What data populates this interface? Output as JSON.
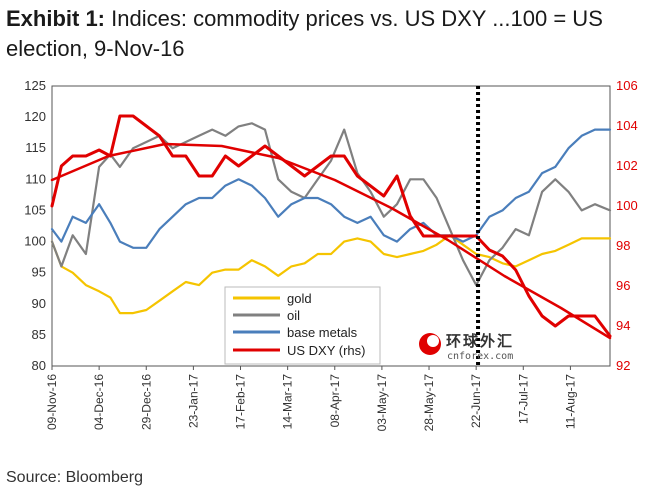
{
  "header": {
    "lead": "Exhibit 1:",
    "title": "Indices: commodity prices vs. US DXY ...100 = US election, 9-Nov-16"
  },
  "footer": {
    "source": "Source: Bloomberg"
  },
  "watermark": {
    "logo_text": "环球外汇",
    "site": "cnforex.com"
  },
  "colors": {
    "gold": "#f5c400",
    "oil": "#808080",
    "base_metals": "#4a7ebb",
    "dxy": "#e00000",
    "right_axis": "#e00000"
  },
  "chart_data": {
    "type": "line",
    "title": "Indices: commodity prices vs. US DXY ...100 = US election, 9-Nov-16",
    "x_tick_labels": [
      "09-Nov-16",
      "04-Dec-16",
      "29-Dec-16",
      "23-Jan-17",
      "17-Feb-17",
      "14-Mar-17",
      "08-Apr-17",
      "03-May-17",
      "28-May-17",
      "22-Jun-17",
      "17-Jul-17",
      "11-Aug-17"
    ],
    "x_range": [
      "2016-11-09",
      "2017-09-01"
    ],
    "y_left": {
      "ticks": [
        "80",
        "85",
        "90",
        "95",
        "100",
        "105",
        "110",
        "115",
        "120",
        "125"
      ],
      "range": [
        80,
        125
      ]
    },
    "y_right": {
      "ticks": [
        "92",
        "94",
        "96",
        "98",
        "100",
        "102",
        "104",
        "106"
      ],
      "range": [
        92,
        106
      ]
    },
    "vertical_marker": {
      "date": "2017-06-23",
      "style": "dotted"
    },
    "legend": {
      "placement": "bottom-center",
      "entries": [
        "gold",
        "oil",
        "base metals",
        "US DXY (rhs)"
      ]
    },
    "series": [
      {
        "name": "gold",
        "axis": "left",
        "color": "#f5c400",
        "points": [
          [
            "2016-11-09",
            100
          ],
          [
            "2016-11-14",
            96
          ],
          [
            "2016-11-20",
            95
          ],
          [
            "2016-11-27",
            93
          ],
          [
            "2016-12-04",
            92
          ],
          [
            "2016-12-10",
            91
          ],
          [
            "2016-12-15",
            88.5
          ],
          [
            "2016-12-22",
            88.5
          ],
          [
            "2016-12-29",
            89
          ],
          [
            "2017-01-05",
            90.5
          ],
          [
            "2017-01-12",
            92
          ],
          [
            "2017-01-19",
            93.5
          ],
          [
            "2017-01-26",
            93
          ],
          [
            "2017-02-02",
            95
          ],
          [
            "2017-02-09",
            95.5
          ],
          [
            "2017-02-16",
            95.5
          ],
          [
            "2017-02-23",
            97
          ],
          [
            "2017-03-02",
            96
          ],
          [
            "2017-03-09",
            94.5
          ],
          [
            "2017-03-16",
            96
          ],
          [
            "2017-03-23",
            96.5
          ],
          [
            "2017-03-30",
            98
          ],
          [
            "2017-04-06",
            98
          ],
          [
            "2017-04-13",
            100
          ],
          [
            "2017-04-20",
            100.5
          ],
          [
            "2017-04-27",
            100
          ],
          [
            "2017-05-04",
            98
          ],
          [
            "2017-05-11",
            97.5
          ],
          [
            "2017-05-18",
            98
          ],
          [
            "2017-05-25",
            98.5
          ],
          [
            "2017-06-01",
            99.5
          ],
          [
            "2017-06-08",
            101
          ],
          [
            "2017-06-15",
            99.5
          ],
          [
            "2017-06-22",
            98
          ],
          [
            "2017-06-29",
            97.5
          ],
          [
            "2017-07-06",
            96.5
          ],
          [
            "2017-07-13",
            96
          ],
          [
            "2017-07-20",
            97
          ],
          [
            "2017-07-27",
            98
          ],
          [
            "2017-08-03",
            98.5
          ],
          [
            "2017-08-10",
            99.5
          ],
          [
            "2017-08-17",
            100.5
          ],
          [
            "2017-08-24",
            100.5
          ],
          [
            "2017-09-01",
            100.5
          ]
        ]
      },
      {
        "name": "oil",
        "axis": "left",
        "color": "#808080",
        "points": [
          [
            "2016-11-09",
            100
          ],
          [
            "2016-11-14",
            96
          ],
          [
            "2016-11-20",
            101
          ],
          [
            "2016-11-27",
            98
          ],
          [
            "2016-12-04",
            112
          ],
          [
            "2016-12-10",
            114
          ],
          [
            "2016-12-15",
            112
          ],
          [
            "2016-12-22",
            115
          ],
          [
            "2016-12-29",
            116
          ],
          [
            "2017-01-05",
            117
          ],
          [
            "2017-01-12",
            115
          ],
          [
            "2017-01-19",
            116
          ],
          [
            "2017-01-26",
            117
          ],
          [
            "2017-02-02",
            118
          ],
          [
            "2017-02-09",
            117
          ],
          [
            "2017-02-16",
            118.5
          ],
          [
            "2017-02-23",
            119
          ],
          [
            "2017-03-02",
            118
          ],
          [
            "2017-03-09",
            110
          ],
          [
            "2017-03-16",
            108
          ],
          [
            "2017-03-23",
            107
          ],
          [
            "2017-03-30",
            110
          ],
          [
            "2017-04-06",
            113
          ],
          [
            "2017-04-13",
            118
          ],
          [
            "2017-04-20",
            111
          ],
          [
            "2017-04-27",
            108
          ],
          [
            "2017-05-04",
            104
          ],
          [
            "2017-05-11",
            106
          ],
          [
            "2017-05-18",
            110
          ],
          [
            "2017-05-25",
            110
          ],
          [
            "2017-06-01",
            107
          ],
          [
            "2017-06-08",
            102
          ],
          [
            "2017-06-15",
            97
          ],
          [
            "2017-06-22",
            93
          ],
          [
            "2017-06-29",
            97
          ],
          [
            "2017-07-06",
            99
          ],
          [
            "2017-07-13",
            102
          ],
          [
            "2017-07-20",
            101
          ],
          [
            "2017-07-27",
            108
          ],
          [
            "2017-08-03",
            110
          ],
          [
            "2017-08-10",
            108
          ],
          [
            "2017-08-17",
            105
          ],
          [
            "2017-08-24",
            106
          ],
          [
            "2017-09-01",
            105
          ]
        ]
      },
      {
        "name": "base metals",
        "axis": "left",
        "color": "#4a7ebb",
        "points": [
          [
            "2016-11-09",
            102
          ],
          [
            "2016-11-14",
            100
          ],
          [
            "2016-11-20",
            104
          ],
          [
            "2016-11-27",
            103
          ],
          [
            "2016-12-04",
            106
          ],
          [
            "2016-12-10",
            103
          ],
          [
            "2016-12-15",
            100
          ],
          [
            "2016-12-22",
            99
          ],
          [
            "2016-12-29",
            99
          ],
          [
            "2017-01-05",
            102
          ],
          [
            "2017-01-12",
            104
          ],
          [
            "2017-01-19",
            106
          ],
          [
            "2017-01-26",
            107
          ],
          [
            "2017-02-02",
            107
          ],
          [
            "2017-02-09",
            109
          ],
          [
            "2017-02-16",
            110
          ],
          [
            "2017-02-23",
            109
          ],
          [
            "2017-03-02",
            107
          ],
          [
            "2017-03-09",
            104
          ],
          [
            "2017-03-16",
            106
          ],
          [
            "2017-03-23",
            107
          ],
          [
            "2017-03-30",
            107
          ],
          [
            "2017-04-06",
            106
          ],
          [
            "2017-04-13",
            104
          ],
          [
            "2017-04-20",
            103
          ],
          [
            "2017-04-27",
            104
          ],
          [
            "2017-05-04",
            101
          ],
          [
            "2017-05-11",
            100
          ],
          [
            "2017-05-18",
            102
          ],
          [
            "2017-05-25",
            103
          ],
          [
            "2017-06-01",
            101
          ],
          [
            "2017-06-08",
            101
          ],
          [
            "2017-06-15",
            100
          ],
          [
            "2017-06-22",
            101
          ],
          [
            "2017-06-29",
            104
          ],
          [
            "2017-07-06",
            105
          ],
          [
            "2017-07-13",
            107
          ],
          [
            "2017-07-20",
            108
          ],
          [
            "2017-07-27",
            111
          ],
          [
            "2017-08-03",
            112
          ],
          [
            "2017-08-10",
            115
          ],
          [
            "2017-08-17",
            117
          ],
          [
            "2017-08-24",
            118
          ],
          [
            "2017-09-01",
            118
          ]
        ]
      },
      {
        "name": "US DXY (rhs)",
        "axis": "right",
        "color": "#e00000",
        "points": [
          [
            "2016-11-09",
            100
          ],
          [
            "2016-11-14",
            102
          ],
          [
            "2016-11-20",
            102.5
          ],
          [
            "2016-11-27",
            102.5
          ],
          [
            "2016-12-04",
            102.8
          ],
          [
            "2016-12-10",
            102.5
          ],
          [
            "2016-12-15",
            104.5
          ],
          [
            "2016-12-22",
            104.5
          ],
          [
            "2016-12-29",
            104
          ],
          [
            "2017-01-05",
            103.5
          ],
          [
            "2017-01-12",
            102.5
          ],
          [
            "2017-01-19",
            102.5
          ],
          [
            "2017-01-26",
            101.5
          ],
          [
            "2017-02-02",
            101.5
          ],
          [
            "2017-02-09",
            102.5
          ],
          [
            "2017-02-16",
            102
          ],
          [
            "2017-02-23",
            102.5
          ],
          [
            "2017-03-02",
            103
          ],
          [
            "2017-03-09",
            102.5
          ],
          [
            "2017-03-16",
            102
          ],
          [
            "2017-03-23",
            101.5
          ],
          [
            "2017-03-30",
            102
          ],
          [
            "2017-04-06",
            102.5
          ],
          [
            "2017-04-13",
            102.5
          ],
          [
            "2017-04-20",
            101.5
          ],
          [
            "2017-04-27",
            101
          ],
          [
            "2017-05-04",
            100.5
          ],
          [
            "2017-05-11",
            101.5
          ],
          [
            "2017-05-18",
            99.5
          ],
          [
            "2017-05-25",
            98.5
          ],
          [
            "2017-06-01",
            98.5
          ],
          [
            "2017-06-08",
            98.5
          ],
          [
            "2017-06-15",
            98.5
          ],
          [
            "2017-06-22",
            98.5
          ],
          [
            "2017-06-29",
            97.8
          ],
          [
            "2017-07-06",
            97.5
          ],
          [
            "2017-07-13",
            96.8
          ],
          [
            "2017-07-20",
            95.5
          ],
          [
            "2017-07-27",
            94.5
          ],
          [
            "2017-08-03",
            94
          ],
          [
            "2017-08-10",
            94.5
          ],
          [
            "2017-08-17",
            94.5
          ],
          [
            "2017-08-24",
            94.5
          ],
          [
            "2017-09-01",
            93.5
          ]
        ]
      },
      {
        "name": "",
        "axis": "right",
        "color": "#e00000",
        "points": [
          [
            "2016-11-09",
            101.3
          ],
          [
            "2016-12-09",
            102.5
          ],
          [
            "2017-01-08",
            103.1
          ],
          [
            "2017-02-07",
            103
          ],
          [
            "2017-03-09",
            102.4
          ],
          [
            "2017-04-08",
            101.3
          ],
          [
            "2017-05-08",
            99.9
          ],
          [
            "2017-06-07",
            98.3
          ],
          [
            "2017-07-07",
            96.5
          ],
          [
            "2017-08-06",
            94.9
          ],
          [
            "2017-09-01",
            93.4
          ]
        ]
      }
    ]
  }
}
